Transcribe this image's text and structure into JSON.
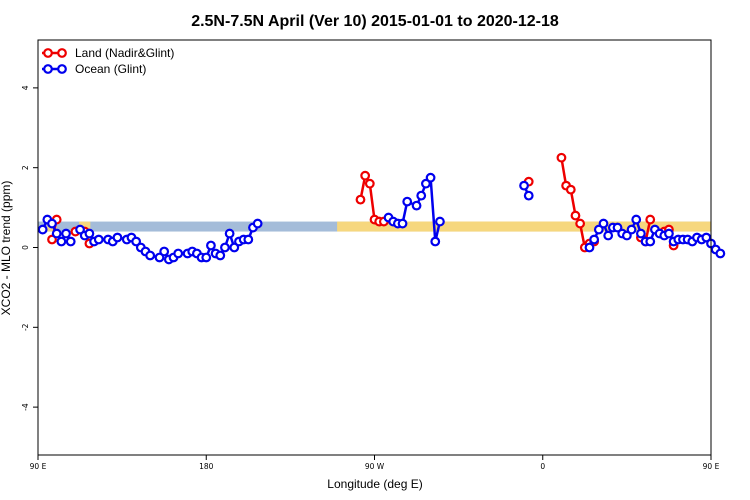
{
  "chart_data": {
    "type": "line",
    "title": "2.5N-7.5N April (Ver 10)   2015-01-01 to 2020-12-18",
    "xlabel": "Longitude (deg E)",
    "ylabel": "XCO2 - MLO trend (ppm)",
    "xlim": [
      90,
      450
    ],
    "ylim": [
      -5.2,
      5.2
    ],
    "x_ticks": [
      {
        "value": 90,
        "label": "90 E"
      },
      {
        "value": 180,
        "label": "180"
      },
      {
        "value": 270,
        "label": "90 W"
      },
      {
        "value": 360,
        "label": "0"
      },
      {
        "value": 450,
        "label": "90 E"
      },
      {
        "value": 540,
        "label": "180"
      }
    ],
    "y_ticks": [
      {
        "value": -4,
        "label": "-4"
      },
      {
        "value": -2,
        "label": "-2"
      },
      {
        "value": 0,
        "label": "0"
      },
      {
        "value": 2,
        "label": "2"
      },
      {
        "value": 4,
        "label": "4"
      }
    ],
    "grid": false,
    "legend_position": "top-left",
    "background_band": {
      "color": "#a4bcd9",
      "y_range": [
        0.4,
        0.65
      ],
      "land_color": "#f6d77e",
      "land_segments": [
        [
          95,
          100
        ],
        [
          112,
          118
        ],
        [
          250,
          460
        ],
        [
          270,
          350
        ],
        [
          350,
          420
        ],
        [
          460,
          490
        ]
      ]
    },
    "series": [
      {
        "name": "Land (Nadir&Glint)",
        "color": "#ee0000",
        "points": [
          [
            97.5,
            0.2
          ],
          [
            100,
            0.7
          ],
          [
            110,
            0.4
          ],
          [
            115,
            0.4
          ],
          [
            117.5,
            0.1
          ],
          [
            262.5,
            1.2
          ],
          [
            265,
            1.8
          ],
          [
            267.5,
            1.6
          ],
          [
            270,
            0.7
          ],
          [
            272.5,
            0.65
          ],
          [
            275,
            0.65
          ],
          [
            352.5,
            1.65
          ],
          [
            370,
            2.25
          ],
          [
            372.5,
            1.55
          ],
          [
            375,
            1.45
          ],
          [
            377.5,
            0.8
          ],
          [
            380,
            0.6
          ],
          [
            382.5,
            0.0
          ],
          [
            385,
            0.1
          ],
          [
            387.5,
            0.15
          ],
          [
            412.5,
            0.25
          ],
          [
            415,
            0.15
          ],
          [
            417.5,
            0.7
          ],
          [
            425,
            0.4
          ],
          [
            427.5,
            0.45
          ],
          [
            430,
            0.05
          ]
        ],
        "segments": [
          [
            [
              97.5,
              0.2
            ],
            [
              100,
              0.7
            ]
          ],
          [
            [
              110,
              0.4
            ],
            [
              115,
              0.4
            ],
            [
              117.5,
              0.1
            ]
          ],
          [
            [
              262.5,
              1.2
            ],
            [
              265,
              1.8
            ],
            [
              267.5,
              1.6
            ],
            [
              270,
              0.7
            ],
            [
              272.5,
              0.65
            ],
            [
              275,
              0.65
            ]
          ],
          [
            [
              370,
              2.25
            ],
            [
              372.5,
              1.55
            ],
            [
              375,
              1.45
            ],
            [
              377.5,
              0.8
            ],
            [
              380,
              0.6
            ],
            [
              382.5,
              0.0
            ],
            [
              385,
              0.1
            ],
            [
              387.5,
              0.15
            ]
          ],
          [
            [
              412.5,
              0.25
            ],
            [
              415,
              0.15
            ],
            [
              417.5,
              0.7
            ]
          ],
          [
            [
              425,
              0.4
            ],
            [
              427.5,
              0.45
            ],
            [
              430,
              0.05
            ]
          ]
        ]
      },
      {
        "name": "Ocean (Glint)",
        "color": "#0000ee",
        "points": [
          [
            92.5,
            0.45
          ],
          [
            95,
            0.7
          ],
          [
            97.5,
            0.6
          ],
          [
            100,
            0.35
          ],
          [
            102.5,
            0.15
          ],
          [
            105,
            0.35
          ],
          [
            107.5,
            0.15
          ],
          [
            112.5,
            0.45
          ],
          [
            115,
            0.3
          ],
          [
            117.5,
            0.35
          ],
          [
            120,
            0.15
          ],
          [
            122.5,
            0.2
          ],
          [
            127.5,
            0.2
          ],
          [
            130,
            0.15
          ],
          [
            132.5,
            0.25
          ],
          [
            137.5,
            0.2
          ],
          [
            140,
            0.25
          ],
          [
            142.5,
            0.15
          ],
          [
            145,
            0.0
          ],
          [
            147.5,
            -0.1
          ],
          [
            150,
            -0.2
          ],
          [
            155,
            -0.25
          ],
          [
            157.5,
            -0.1
          ],
          [
            160,
            -0.3
          ],
          [
            162.5,
            -0.25
          ],
          [
            165,
            -0.15
          ],
          [
            170,
            -0.15
          ],
          [
            172.5,
            -0.1
          ],
          [
            175,
            -0.15
          ],
          [
            177.5,
            -0.25
          ],
          [
            180,
            -0.25
          ],
          [
            182.5,
            0.05
          ],
          [
            185,
            -0.15
          ],
          [
            187.5,
            -0.2
          ],
          [
            190,
            0.0
          ],
          [
            192.5,
            0.35
          ],
          [
            195,
            0.0
          ],
          [
            197.5,
            0.15
          ],
          [
            200,
            0.2
          ],
          [
            202.5,
            0.2
          ],
          [
            205,
            0.5
          ],
          [
            207.5,
            0.6
          ],
          [
            277.5,
            0.75
          ],
          [
            280,
            0.65
          ],
          [
            282.5,
            0.6
          ],
          [
            285,
            0.6
          ],
          [
            287.5,
            1.15
          ],
          [
            292.5,
            1.05
          ],
          [
            295,
            1.3
          ],
          [
            297.5,
            1.6
          ],
          [
            300,
            1.75
          ],
          [
            302.5,
            0.15
          ],
          [
            305,
            0.65
          ],
          [
            350,
            1.55
          ],
          [
            352.5,
            1.3
          ],
          [
            385,
            0.0
          ],
          [
            387.5,
            0.2
          ],
          [
            390,
            0.45
          ],
          [
            392.5,
            0.6
          ],
          [
            395,
            0.3
          ],
          [
            397.5,
            0.5
          ],
          [
            400,
            0.5
          ],
          [
            402.5,
            0.35
          ],
          [
            405,
            0.3
          ],
          [
            407.5,
            0.45
          ],
          [
            410,
            0.7
          ],
          [
            412.5,
            0.35
          ],
          [
            415,
            0.15
          ],
          [
            417.5,
            0.15
          ],
          [
            420,
            0.45
          ],
          [
            422.5,
            0.35
          ],
          [
            425,
            0.3
          ],
          [
            427.5,
            0.35
          ],
          [
            430,
            0.15
          ],
          [
            432.5,
            0.2
          ],
          [
            435,
            0.2
          ],
          [
            437.5,
            0.2
          ],
          [
            440,
            0.15
          ],
          [
            442.5,
            0.25
          ],
          [
            445,
            0.2
          ],
          [
            447.5,
            0.25
          ],
          [
            450,
            0.1
          ],
          [
            452.5,
            -0.05
          ],
          [
            455,
            -0.15
          ]
        ],
        "segments": [
          [
            [
              92.5,
              0.45
            ],
            [
              95,
              0.7
            ],
            [
              97.5,
              0.6
            ],
            [
              100,
              0.35
            ],
            [
              102.5,
              0.15
            ],
            [
              105,
              0.35
            ],
            [
              107.5,
              0.15
            ]
          ],
          [
            [
              112.5,
              0.45
            ],
            [
              115,
              0.3
            ],
            [
              117.5,
              0.35
            ],
            [
              120,
              0.15
            ],
            [
              122.5,
              0.2
            ],
            [
              127.5,
              0.2
            ],
            [
              130,
              0.15
            ],
            [
              132.5,
              0.25
            ],
            [
              137.5,
              0.2
            ],
            [
              140,
              0.25
            ],
            [
              142.5,
              0.15
            ],
            [
              145,
              0.0
            ],
            [
              147.5,
              -0.1
            ],
            [
              150,
              -0.2
            ],
            [
              155,
              -0.25
            ],
            [
              157.5,
              -0.1
            ],
            [
              160,
              -0.3
            ],
            [
              162.5,
              -0.25
            ],
            [
              165,
              -0.15
            ],
            [
              170,
              -0.15
            ],
            [
              172.5,
              -0.1
            ],
            [
              175,
              -0.15
            ],
            [
              177.5,
              -0.25
            ],
            [
              180,
              -0.25
            ],
            [
              182.5,
              0.05
            ],
            [
              185,
              -0.15
            ],
            [
              187.5,
              -0.2
            ],
            [
              190,
              0.0
            ],
            [
              192.5,
              0.35
            ],
            [
              195,
              0.0
            ],
            [
              197.5,
              0.15
            ],
            [
              200,
              0.2
            ],
            [
              202.5,
              0.2
            ],
            [
              205,
              0.5
            ],
            [
              207.5,
              0.6
            ]
          ],
          [
            [
              277.5,
              0.75
            ],
            [
              280,
              0.65
            ],
            [
              282.5,
              0.6
            ],
            [
              285,
              0.6
            ],
            [
              287.5,
              1.15
            ],
            [
              292.5,
              1.05
            ],
            [
              295,
              1.3
            ],
            [
              297.5,
              1.6
            ],
            [
              300,
              1.75
            ],
            [
              302.5,
              0.15
            ],
            [
              305,
              0.65
            ]
          ],
          [
            [
              350,
              1.55
            ],
            [
              352.5,
              1.3
            ]
          ],
          [
            [
              385,
              0.0
            ],
            [
              387.5,
              0.2
            ],
            [
              390,
              0.45
            ],
            [
              392.5,
              0.6
            ],
            [
              395,
              0.3
            ],
            [
              397.5,
              0.5
            ],
            [
              400,
              0.5
            ],
            [
              402.5,
              0.35
            ],
            [
              405,
              0.3
            ],
            [
              407.5,
              0.45
            ],
            [
              410,
              0.7
            ],
            [
              412.5,
              0.35
            ],
            [
              415,
              0.15
            ],
            [
              417.5,
              0.15
            ],
            [
              420,
              0.45
            ],
            [
              422.5,
              0.35
            ],
            [
              425,
              0.3
            ],
            [
              427.5,
              0.35
            ],
            [
              430,
              0.15
            ],
            [
              432.5,
              0.2
            ],
            [
              435,
              0.2
            ],
            [
              437.5,
              0.2
            ],
            [
              440,
              0.15
            ],
            [
              442.5,
              0.25
            ],
            [
              445,
              0.2
            ],
            [
              447.5,
              0.25
            ],
            [
              450,
              0.1
            ],
            [
              452.5,
              -0.05
            ],
            [
              455,
              -0.15
            ]
          ]
        ]
      }
    ]
  }
}
